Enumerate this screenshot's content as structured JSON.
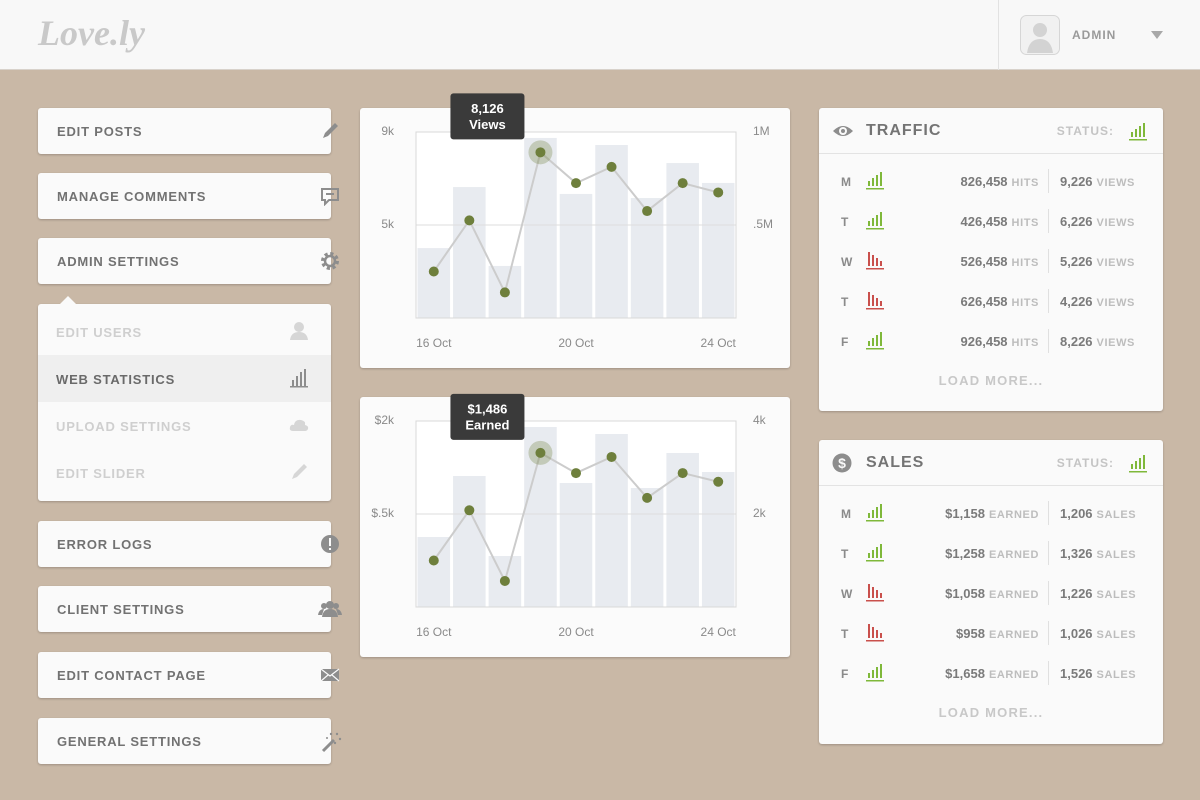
{
  "header": {
    "logo": "Love.ly",
    "user": "ADMIN"
  },
  "menu": [
    {
      "label": "EDIT POSTS"
    },
    {
      "label": "MANAGE COMMENTS"
    },
    {
      "label": "ADMIN SETTINGS",
      "submenu": [
        "EDIT USERS",
        "WEB STATISTICS",
        "UPLOAD SETTINGS",
        "EDIT SLIDER"
      ]
    },
    {
      "label": "ERROR LOGS"
    },
    {
      "label": "CLIENT SETTINGS"
    },
    {
      "label": "EDIT CONTACT PAGE"
    },
    {
      "label": "GENERAL SETTINGS"
    }
  ],
  "chart_data": [
    {
      "type": "combo",
      "categories": [
        "16 Oct",
        null,
        null,
        null,
        "20 Oct",
        null,
        null,
        null,
        "24 Oct"
      ],
      "series": [
        {
          "type": "bar",
          "axis": "y2",
          "color": "#e8ebf0",
          "values": [
            376000,
            704000,
            280000,
            968000,
            667000,
            930000,
            645000,
            833000,
            726000
          ]
        },
        {
          "type": "line",
          "name": "Views",
          "color": "#6e7f3c",
          "line_color": "#cccccc",
          "values": [
            3000,
            5200,
            2100,
            8126,
            6800,
            7500,
            5600,
            6800,
            6400
          ],
          "value_labels": [
            null,
            null,
            null,
            "8,126",
            null,
            null,
            null,
            null,
            null
          ]
        }
      ],
      "ylim": [
        1000,
        9000
      ],
      "yticks": [
        {
          "value": 5000,
          "label": "5k"
        },
        {
          "value": 9000,
          "label": "9k"
        }
      ],
      "y2lim": [
        0,
        1000000
      ],
      "y2ticks": [
        {
          "value": 500000,
          "label": ".5M"
        },
        {
          "value": 1000000,
          "label": "1M"
        }
      ],
      "grid": true
    },
    {
      "type": "combo",
      "categories": [
        "16 Oct",
        null,
        null,
        null,
        "20 Oct",
        null,
        null,
        null,
        "24 Oct"
      ],
      "series": [
        {
          "type": "bar",
          "axis": "y2",
          "color": "#e8ebf0",
          "values": [
            1505,
            2817,
            1097,
            3871,
            2667,
            3720,
            2559,
            3312,
            2903
          ]
        },
        {
          "type": "line",
          "name": "Earned",
          "color": "#6e7f3c",
          "line_color": "#cccccc",
          "values": [
            -250,
            560,
            -580,
            1486,
            1160,
            1420,
            760,
            1160,
            1020
          ],
          "value_labels": [
            null,
            null,
            null,
            "$1,486",
            null,
            null,
            null,
            null,
            null
          ]
        }
      ],
      "ylim": [
        -1000,
        2000
      ],
      "yticks": [
        {
          "value": 500,
          "label": "$.5k"
        },
        {
          "value": 2000,
          "label": "$2k"
        }
      ],
      "y2lim": [
        0,
        4000
      ],
      "y2ticks": [
        {
          "value": 2000,
          "label": "2k"
        },
        {
          "value": 4000,
          "label": "4k"
        }
      ],
      "grid": true
    }
  ],
  "panels": [
    {
      "title": "TRAFFIC",
      "status_label": "STATUS:",
      "status_trend": "up",
      "unit_a": "HITS",
      "unit_b": "VIEWS",
      "rows": [
        {
          "day": "M",
          "trend": "up",
          "a": "826,458",
          "b": "9,226"
        },
        {
          "day": "T",
          "trend": "up",
          "a": "426,458",
          "b": "6,226"
        },
        {
          "day": "W",
          "trend": "down",
          "a": "526,458",
          "b": "5,226"
        },
        {
          "day": "T",
          "trend": "down",
          "a": "626,458",
          "b": "4,226"
        },
        {
          "day": "F",
          "trend": "up",
          "a": "926,458",
          "b": "8,226"
        }
      ],
      "load_more": "LOAD MORE..."
    },
    {
      "title": "SALES",
      "status_label": "STATUS:",
      "status_trend": "up",
      "unit_a": "EARNED",
      "unit_b": "SALES",
      "rows": [
        {
          "day": "M",
          "trend": "up",
          "a": "$1,158",
          "b": "1,206"
        },
        {
          "day": "T",
          "trend": "up",
          "a": "$1,258",
          "b": "1,326"
        },
        {
          "day": "W",
          "trend": "down",
          "a": "$1,058",
          "b": "1,226"
        },
        {
          "day": "T",
          "trend": "down",
          "a": "$958",
          "b": "1,026"
        },
        {
          "day": "F",
          "trend": "up",
          "a": "$1,658",
          "b": "1,526"
        }
      ],
      "load_more": "LOAD MORE..."
    }
  ]
}
